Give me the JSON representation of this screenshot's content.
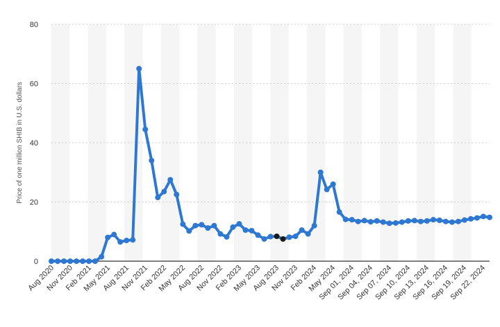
{
  "chart_data": {
    "type": "line",
    "title": "",
    "xlabel": "",
    "ylabel": "Price of one million SHIB in U.S. dollars",
    "ylim": [
      0,
      80
    ],
    "yticks": [
      0,
      20,
      40,
      60,
      80
    ],
    "grid": "horizontal dotted",
    "alternating_bands": true,
    "line_color": "#2f78d2",
    "highlight_color": "#1a1a1a",
    "band_color": "#f5f5f5",
    "x_tick_labels": [
      "Aug 2020",
      "Nov 2020",
      "Feb 2021",
      "May 2021",
      "Aug 2021",
      "Nov 2021",
      "Feb 2022",
      "May 2022",
      "Aug 2022",
      "Nov 2022",
      "Feb 2023",
      "May 2023",
      "Aug 2023",
      "Nov 2023",
      "Feb 2024",
      "May 2024",
      "Sep 01, 2024",
      "Sep 04, 2024",
      "Sep 07, 2024",
      "Sep 10, 2024",
      "Sep 13, 2024",
      "Sep 16, 2024",
      "Sep 19, 2024",
      "Sep 22, 2024"
    ],
    "series": [
      {
        "values": [
          0,
          0,
          0,
          0,
          0,
          0,
          0,
          0,
          1.5,
          8,
          9,
          6.5,
          7,
          7.2,
          65,
          44.5,
          34,
          21.5,
          23.5,
          27.5,
          22.5,
          12.5,
          10.2,
          12,
          12.3,
          11.2,
          12,
          9.2,
          8.2,
          11.5,
          12.6,
          10.5,
          10.3,
          8.8,
          7.5,
          8.3,
          8.4,
          7.5,
          8.1,
          8.4,
          10.5,
          9.2,
          12,
          30,
          24.2,
          26,
          16.6,
          14.1,
          14,
          13.4,
          13.7,
          13.3,
          13.6,
          13.2,
          12.8,
          12.9,
          13.2,
          13.6,
          13.7,
          13.4,
          13.6,
          14,
          13.8,
          13.4,
          13.2,
          13.4,
          13.9,
          14.3,
          14.6,
          15.1,
          14.8
        ],
        "highlighted_indices": [
          36,
          37
        ]
      }
    ]
  }
}
